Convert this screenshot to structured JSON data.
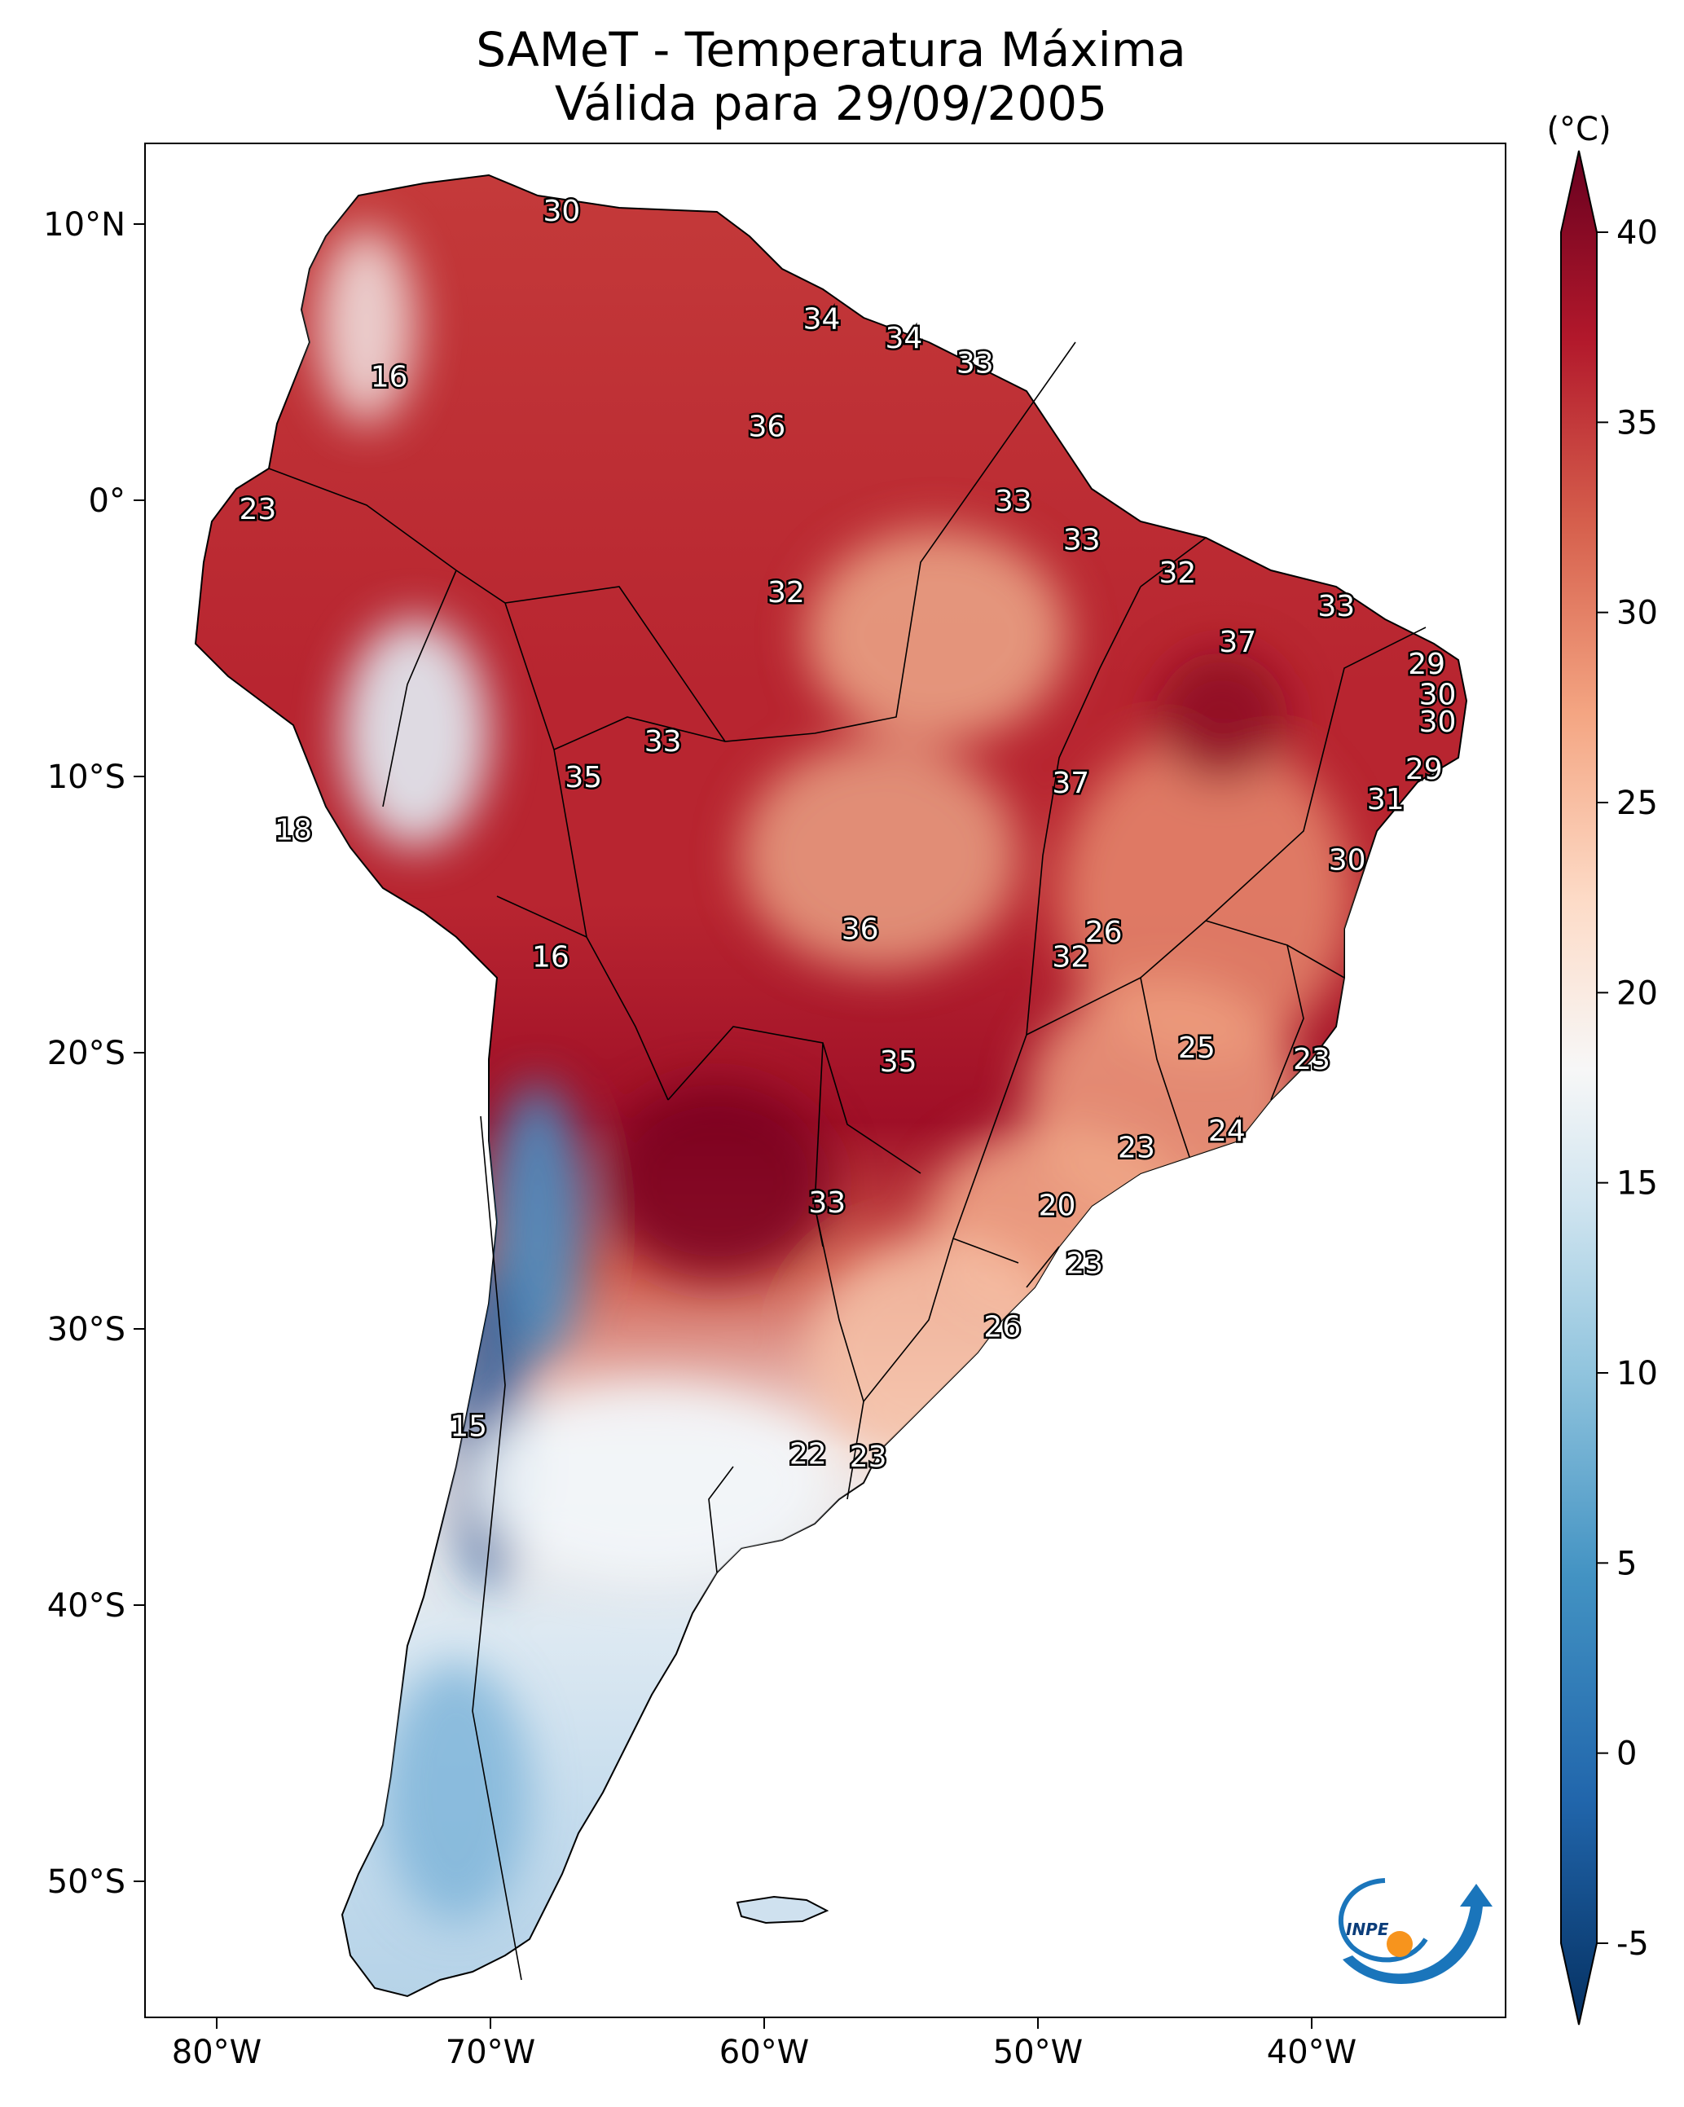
{
  "title": {
    "line1": "SAMeT - Temperatura Máxima",
    "line2": "Válida para 29/09/2005"
  },
  "axes": {
    "x_ticks": [
      {
        "lon": -80,
        "label": "80°W"
      },
      {
        "lon": -70,
        "label": "70°W"
      },
      {
        "lon": -60,
        "label": "60°W"
      },
      {
        "lon": -50,
        "label": "50°W"
      },
      {
        "lon": -40,
        "label": "40°W"
      }
    ],
    "y_ticks": [
      {
        "lat": 10,
        "label": "10°N"
      },
      {
        "lat": 0,
        "label": "0°"
      },
      {
        "lat": -10,
        "label": "10°S"
      },
      {
        "lat": -20,
        "label": "20°S"
      },
      {
        "lat": -30,
        "label": "30°S"
      },
      {
        "lat": -40,
        "label": "40°S"
      },
      {
        "lat": -50,
        "label": "50°S"
      }
    ]
  },
  "colorbar": {
    "unit": "(°C)",
    "ticks": [
      {
        "value": 40,
        "label": "40"
      },
      {
        "value": 35,
        "label": "35"
      },
      {
        "value": 30,
        "label": "30"
      },
      {
        "value": 25,
        "label": "25"
      },
      {
        "value": 20,
        "label": "20"
      },
      {
        "value": 15,
        "label": "15"
      },
      {
        "value": 10,
        "label": "10"
      },
      {
        "value": 5,
        "label": "5"
      },
      {
        "value": 0,
        "label": "0"
      },
      {
        "value": -5,
        "label": "-5"
      }
    ],
    "range": [
      -5,
      40
    ],
    "colors": [
      "#053061",
      "#2166ac",
      "#4393c3",
      "#92c5de",
      "#d1e5f0",
      "#f7f7f7",
      "#fddbc7",
      "#f4a582",
      "#d6604d",
      "#b2182b",
      "#67001f"
    ]
  },
  "logo": {
    "text": "INPE",
    "colors": {
      "blue": "#1a75bb",
      "orange": "#f7941d"
    }
  },
  "annotations": [
    {
      "lon": -67.4,
      "lat": 10.5,
      "value": "30"
    },
    {
      "lon": -57.9,
      "lat": 6.6,
      "value": "34"
    },
    {
      "lon": -54.9,
      "lat": 5.9,
      "value": "34"
    },
    {
      "lon": -52.3,
      "lat": 5.0,
      "value": "33"
    },
    {
      "lon": -73.7,
      "lat": 4.5,
      "value": "16"
    },
    {
      "lon": -59.9,
      "lat": 2.7,
      "value": "36"
    },
    {
      "lon": -50.9,
      "lat": 0.0,
      "value": "33"
    },
    {
      "lon": -78.5,
      "lat": -0.3,
      "value": "23"
    },
    {
      "lon": -48.4,
      "lat": -1.4,
      "value": "33"
    },
    {
      "lon": -44.9,
      "lat": -2.6,
      "value": "32"
    },
    {
      "lon": -59.2,
      "lat": -3.3,
      "value": "32"
    },
    {
      "lon": -39.1,
      "lat": -3.8,
      "value": "33"
    },
    {
      "lon": -42.7,
      "lat": -5.1,
      "value": "37"
    },
    {
      "lon": -35.8,
      "lat": -5.9,
      "value": "29"
    },
    {
      "lon": -35.4,
      "lat": -7.0,
      "value": "30"
    },
    {
      "lon": -35.4,
      "lat": -8.0,
      "value": "30"
    },
    {
      "lon": -63.7,
      "lat": -8.7,
      "value": "33"
    },
    {
      "lon": -66.6,
      "lat": -10.0,
      "value": "35"
    },
    {
      "lon": -48.8,
      "lat": -10.2,
      "value": "37"
    },
    {
      "lon": -35.9,
      "lat": -9.7,
      "value": "29"
    },
    {
      "lon": -37.3,
      "lat": -10.8,
      "value": "31"
    },
    {
      "lon": -77.2,
      "lat": -11.9,
      "value": "18"
    },
    {
      "lon": -38.7,
      "lat": -13.0,
      "value": "30"
    },
    {
      "lon": -56.5,
      "lat": -15.5,
      "value": "36"
    },
    {
      "lon": -47.6,
      "lat": -15.6,
      "value": "26"
    },
    {
      "lon": -48.8,
      "lat": -16.5,
      "value": "32"
    },
    {
      "lon": -67.8,
      "lat": -16.5,
      "value": "16"
    },
    {
      "lon": -44.2,
      "lat": -19.8,
      "value": "25"
    },
    {
      "lon": -40.0,
      "lat": -20.2,
      "value": "23"
    },
    {
      "lon": -55.1,
      "lat": -20.3,
      "value": "35"
    },
    {
      "lon": -43.1,
      "lat": -22.8,
      "value": "24"
    },
    {
      "lon": -46.4,
      "lat": -23.4,
      "value": "23"
    },
    {
      "lon": -57.7,
      "lat": -25.4,
      "value": "33"
    },
    {
      "lon": -49.3,
      "lat": -25.5,
      "value": "20"
    },
    {
      "lon": -48.3,
      "lat": -27.6,
      "value": "23"
    },
    {
      "lon": -51.3,
      "lat": -29.9,
      "value": "26"
    },
    {
      "lon": -70.8,
      "lat": -33.5,
      "value": "15"
    },
    {
      "lon": -58.4,
      "lat": -34.5,
      "value": "22"
    },
    {
      "lon": -56.2,
      "lat": -34.6,
      "value": "23"
    }
  ]
}
